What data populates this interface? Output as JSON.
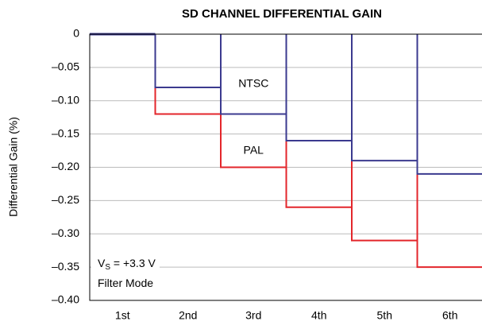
{
  "chart_data": {
    "type": "step",
    "title": "SD CHANNEL DIFFERENTIAL GAIN",
    "ylabel": "Differential Gain (%)",
    "categories": [
      "1st",
      "2nd",
      "3rd",
      "4th",
      "5th",
      "6th"
    ],
    "series": [
      {
        "name": "PAL",
        "color": "#e3262b",
        "values": [
          0,
          -0.12,
          -0.2,
          -0.26,
          -0.31,
          -0.35
        ]
      },
      {
        "name": "NTSC",
        "color": "#3b3a8f",
        "values": [
          0,
          -0.08,
          -0.12,
          -0.16,
          -0.19,
          -0.21
        ]
      }
    ],
    "series_label_y": [
      -0.175,
      -0.075
    ],
    "ylim": [
      -0.4,
      0
    ],
    "yticks": [
      {
        "value": -0.4,
        "label": "–0.40"
      },
      {
        "value": -0.35,
        "label": "–0.35"
      },
      {
        "value": -0.3,
        "label": "–0.30"
      },
      {
        "value": -0.25,
        "label": "–0.25"
      },
      {
        "value": -0.2,
        "label": "–0.20"
      },
      {
        "value": -0.15,
        "label": "–0.15"
      },
      {
        "value": -0.1,
        "label": "–0.10"
      },
      {
        "value": -0.05,
        "label": "–0.05"
      },
      0
    ],
    "grid": true,
    "note": {
      "parts": [
        "V",
        "S",
        " = +3.3 V"
      ],
      "line2": "Filter Mode"
    }
  }
}
